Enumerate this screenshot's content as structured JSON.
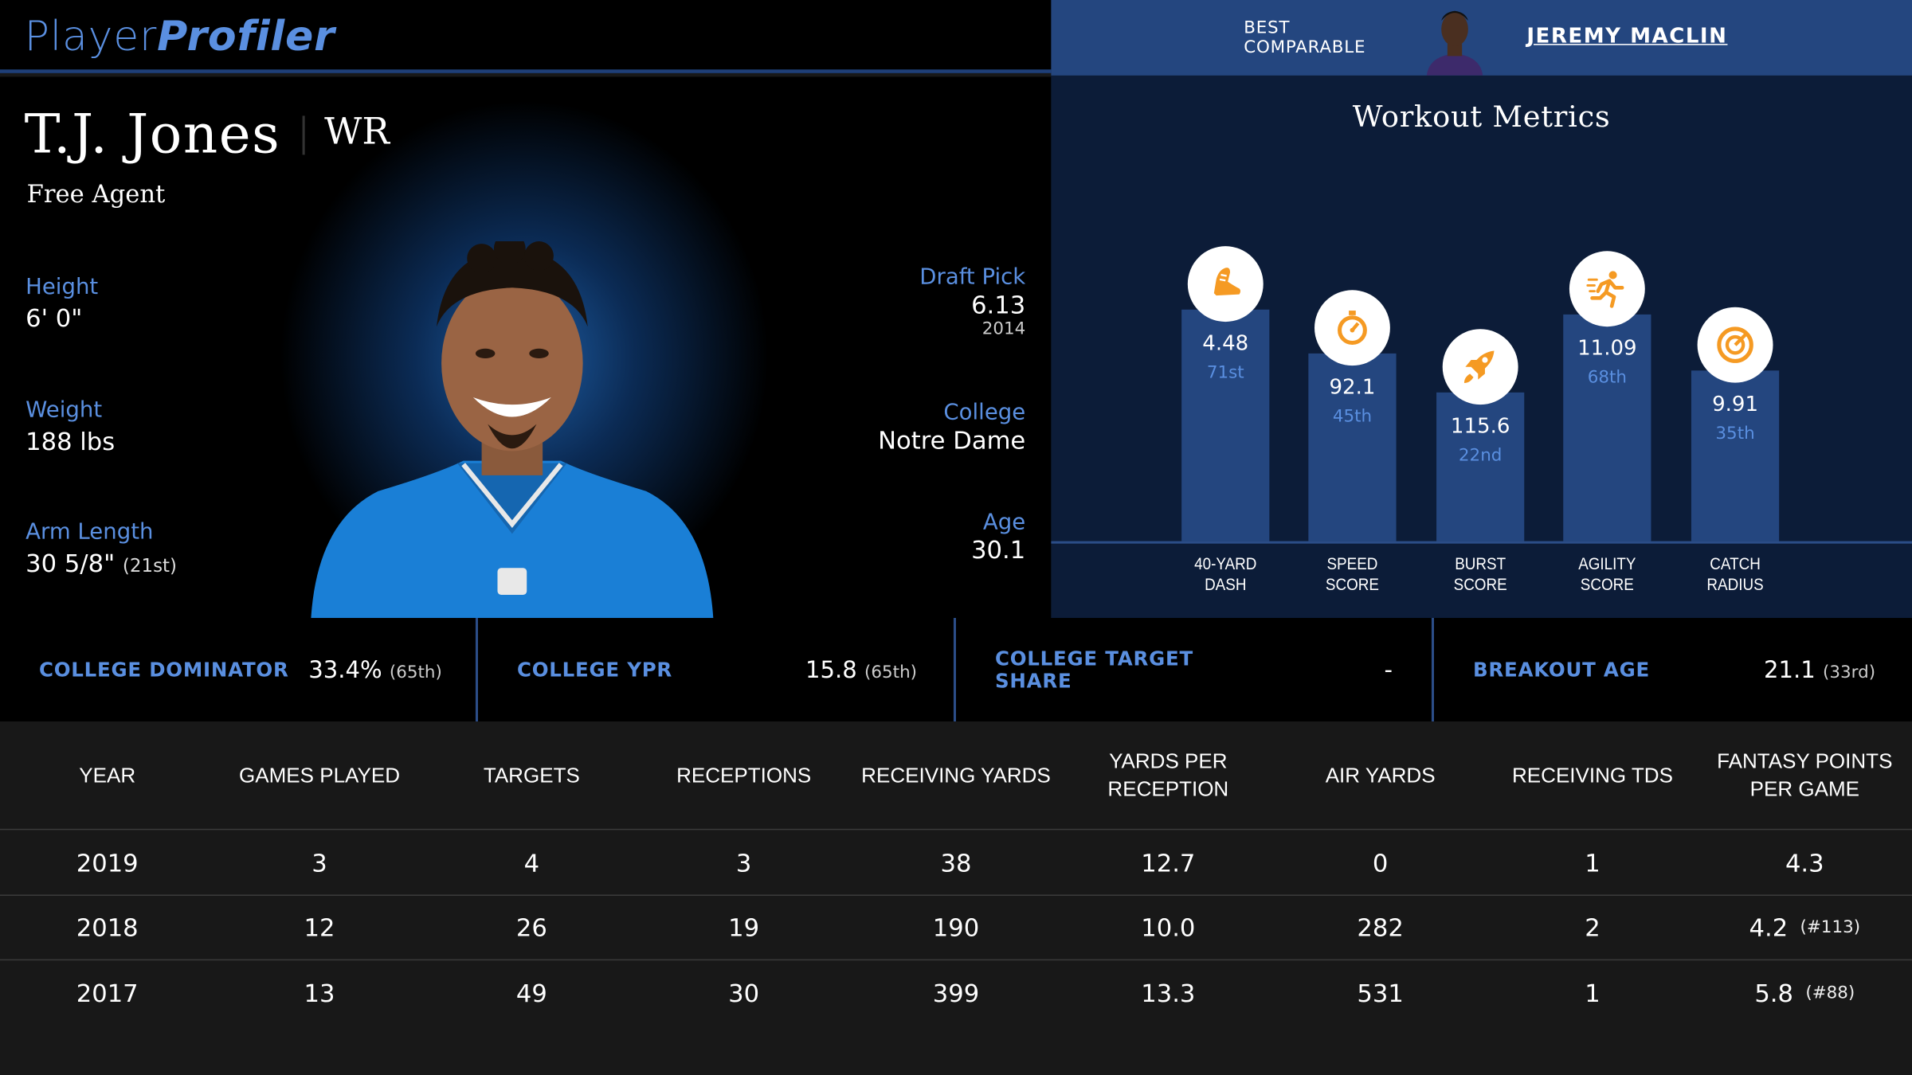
{
  "header": {
    "logo_part1": "Player",
    "logo_part2": "Profiler",
    "best_comparable_label_1": "BEST",
    "best_comparable_label_2": "COMPARABLE",
    "best_comparable_name": "JEREMY MACLIN"
  },
  "player": {
    "name": "T.J. Jones",
    "position": "WR",
    "team": "Free Agent",
    "height_label": "Height",
    "height": "6' 0\"",
    "weight_label": "Weight",
    "weight": "188 lbs",
    "arm_label": "Arm Length",
    "arm": "30 5/8\"",
    "arm_rank": "(21st)",
    "draft_label": "Draft Pick",
    "draft_pick": "6.13",
    "draft_year": "2014",
    "college_label": "College",
    "college": "Notre Dame",
    "age_label": "Age",
    "age": "30.1"
  },
  "workout": {
    "title": "Workout Metrics",
    "accent_color": "#f59a23",
    "metrics": [
      {
        "label1": "40-YARD",
        "label2": "DASH",
        "value": "4.48",
        "pct": "71st",
        "percentile": 71,
        "icon": "shoe-icon"
      },
      {
        "label1": "SPEED",
        "label2": "SCORE",
        "value": "92.1",
        "pct": "45th",
        "percentile": 45,
        "icon": "stopwatch-icon"
      },
      {
        "label1": "BURST",
        "label2": "SCORE",
        "value": "115.6",
        "pct": "22nd",
        "percentile": 22,
        "icon": "rocket-icon"
      },
      {
        "label1": "AGILITY",
        "label2": "SCORE",
        "value": "11.09",
        "pct": "68th",
        "percentile": 68,
        "icon": "runner-icon"
      },
      {
        "label1": "CATCH",
        "label2": "RADIUS",
        "value": "9.91",
        "pct": "35th",
        "percentile": 35,
        "icon": "target-icon"
      }
    ]
  },
  "college_stats": {
    "dominator_label": "COLLEGE DOMINATOR",
    "dominator": "33.4%",
    "dominator_rank": "(65th)",
    "ypr_label": "COLLEGE YPR",
    "ypr": "15.8",
    "ypr_rank": "(65th)",
    "target_share_label_1": "COLLEGE TARGET",
    "target_share_label_2": "SHARE",
    "target_share": "-",
    "breakout_label": "BREAKOUT AGE",
    "breakout": "21.1",
    "breakout_rank": "(33rd)"
  },
  "table": {
    "headers": [
      "YEAR",
      "GAMES PLAYED",
      "TARGETS",
      "RECEPTIONS",
      "RECEIVING YARDS",
      "YARDS PER RECEPTION",
      "AIR YARDS",
      "RECEIVING TDS",
      "FANTASY POINTS PER GAME"
    ],
    "rows": [
      {
        "cells": [
          "2019",
          "3",
          "4",
          "3",
          "38",
          "12.7",
          "0",
          "1",
          "4.3"
        ],
        "rank": ""
      },
      {
        "cells": [
          "2018",
          "12",
          "26",
          "19",
          "190",
          "10.0",
          "282",
          "2",
          "4.2"
        ],
        "rank": "(#113)"
      },
      {
        "cells": [
          "2017",
          "13",
          "49",
          "30",
          "399",
          "13.3",
          "531",
          "1",
          "5.8"
        ],
        "rank": "(#88)"
      }
    ]
  }
}
